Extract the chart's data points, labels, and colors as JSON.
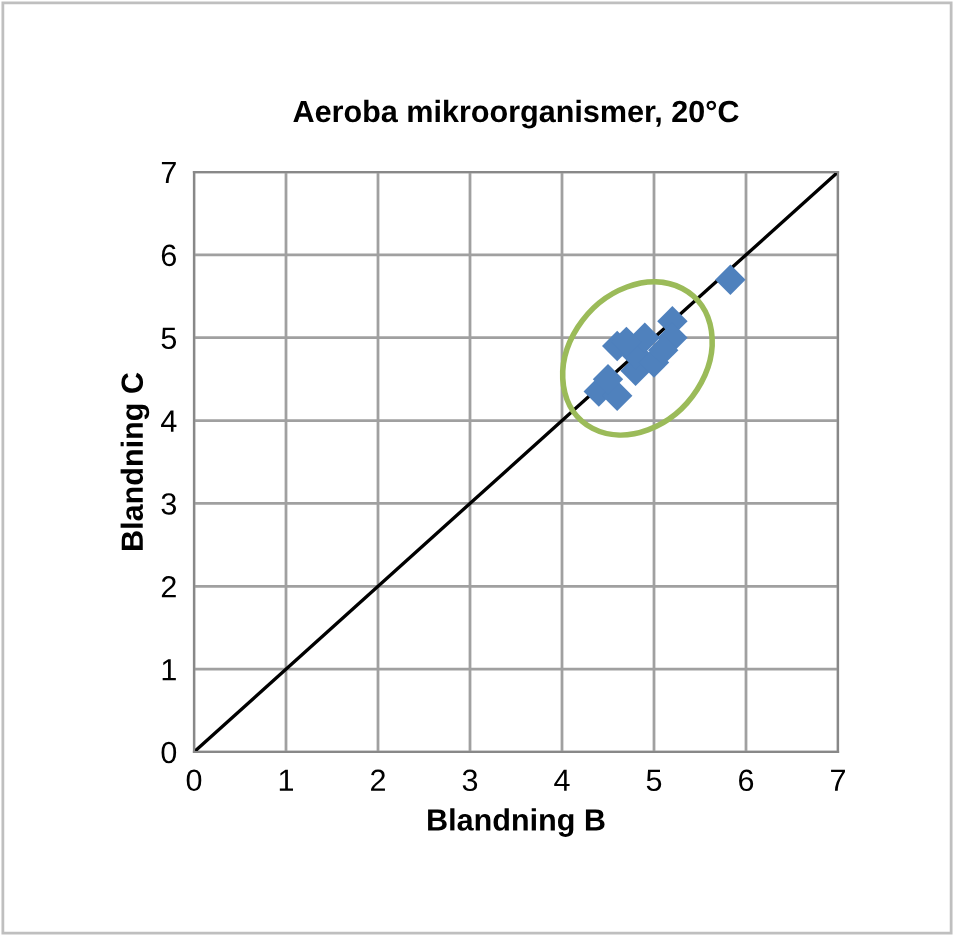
{
  "chart_data": {
    "type": "scatter",
    "title": "Aeroba mikroorganismer, 20°C",
    "xlabel": "Blandning B",
    "ylabel": "Blandning C",
    "xlim": [
      0,
      7
    ],
    "ylim": [
      0,
      7
    ],
    "xticks": [
      0,
      1,
      2,
      3,
      4,
      5,
      6,
      7
    ],
    "yticks": [
      0,
      1,
      2,
      3,
      4,
      5,
      6,
      7
    ],
    "grid": true,
    "series": [
      {
        "type": "line",
        "color": "#000000",
        "marker": "none",
        "x": [
          0,
          7
        ],
        "values": [
          0,
          7
        ]
      },
      {
        "color": "#4f81bd",
        "marker": "diamond",
        "x": [
          4.4,
          4.6,
          4.5,
          4.6,
          4.8,
          4.8,
          4.9,
          5.0,
          5.2,
          5.2,
          4.7,
          5.1,
          5.83
        ],
        "values": [
          4.35,
          4.3,
          4.5,
          4.9,
          4.6,
          4.8,
          5.0,
          4.7,
          5.2,
          5.0,
          4.95,
          4.85,
          5.7
        ]
      }
    ]
  }
}
